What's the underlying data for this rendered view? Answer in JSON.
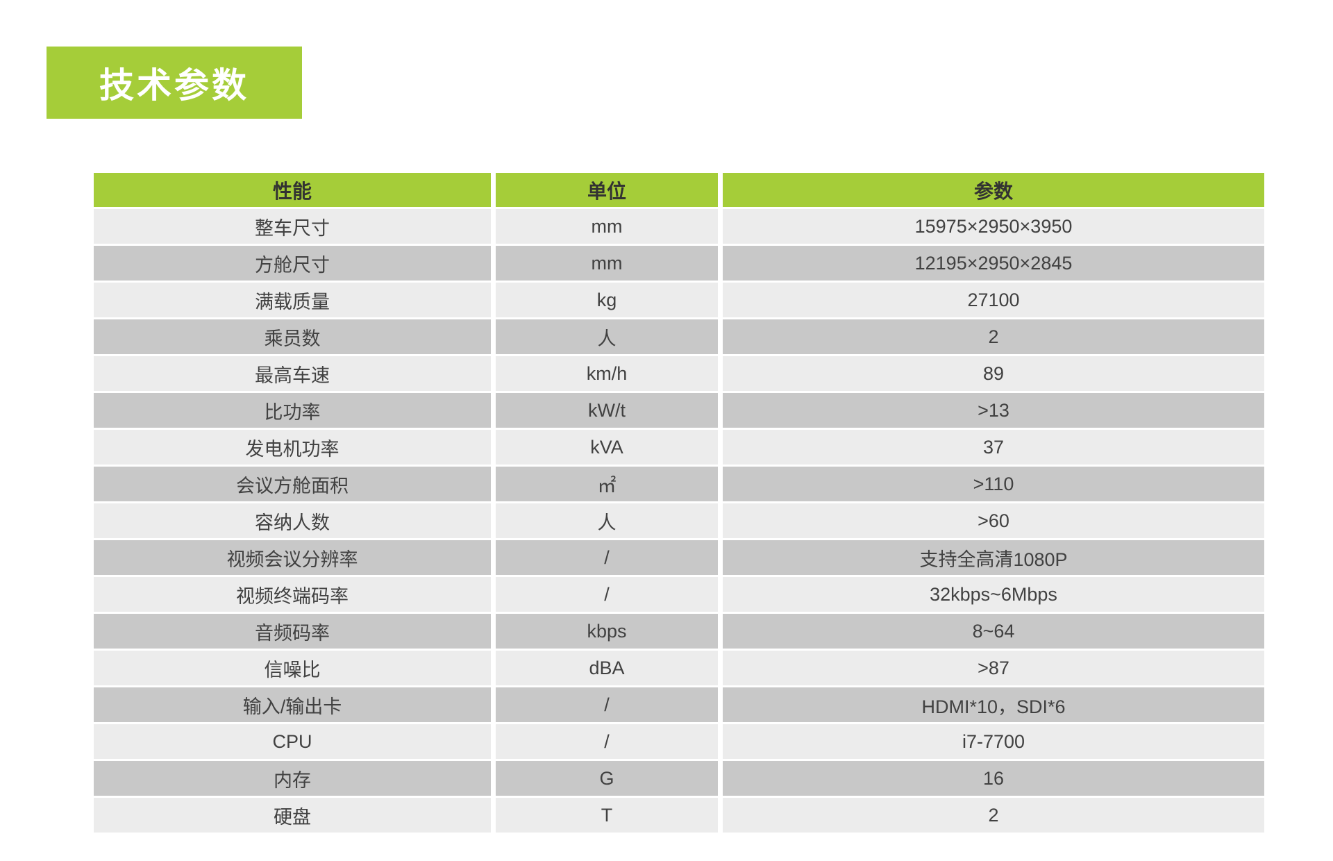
{
  "title": "技术参数",
  "table": {
    "columns": [
      "性能",
      "单位",
      "参数"
    ],
    "rows": [
      {
        "name": "整车尺寸",
        "unit": "mm",
        "value": "15975×2950×3950"
      },
      {
        "name": "方舱尺寸",
        "unit": "mm",
        "value": "12195×2950×2845"
      },
      {
        "name": "满载质量",
        "unit": "kg",
        "value": "27100"
      },
      {
        "name": "乘员数",
        "unit": "人",
        "value": "2"
      },
      {
        "name": "最高车速",
        "unit": "km/h",
        "value": "89"
      },
      {
        "name": "比功率",
        "unit": "kW/t",
        "value": ">13"
      },
      {
        "name": "发电机功率",
        "unit": "kVA",
        "value": "37"
      },
      {
        "name": "会议方舱面积",
        "unit": "㎡",
        "value": ">110"
      },
      {
        "name": "容纳人数",
        "unit": "人",
        "value": ">60"
      },
      {
        "name": "视频会议分辨率",
        "unit": "/",
        "value": "支持全高清1080P"
      },
      {
        "name": "视频终端码率",
        "unit": "/",
        "value": "32kbps~6Mbps"
      },
      {
        "name": "音频码率",
        "unit": "kbps",
        "value": "8~64"
      },
      {
        "name": "信噪比",
        "unit": "dBA",
        "value": ">87"
      },
      {
        "name": "输入/输出卡",
        "unit": "/",
        "value": "HDMI*10，SDI*6"
      },
      {
        "name": "CPU",
        "unit": "/",
        "value": "i7-7700"
      },
      {
        "name": "内存",
        "unit": "G",
        "value": "16"
      },
      {
        "name": "硬盘",
        "unit": "T",
        "value": "2"
      }
    ]
  },
  "colors": {
    "accent_green": "#a5cd39",
    "row_light": "#ececec",
    "row_dark": "#c8c8c8",
    "text": "#414141"
  }
}
